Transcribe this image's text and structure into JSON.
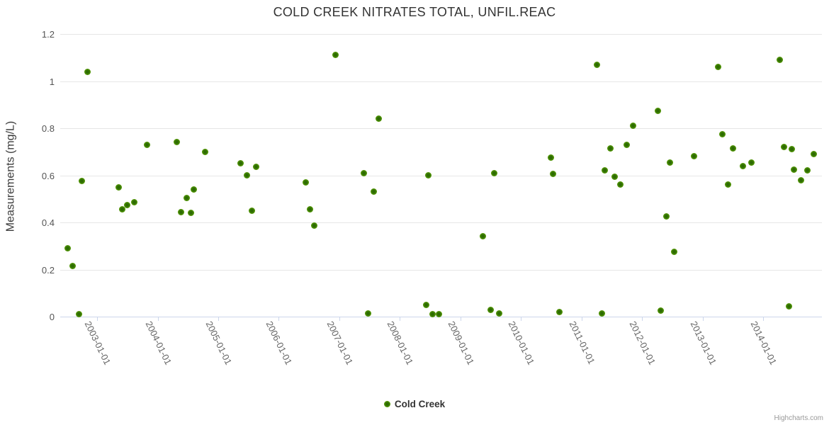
{
  "chart": {
    "title": "COLD CREEK NITRATES TOTAL, UNFIL.REAC",
    "y_axis_title": "Measurements (mg/L)",
    "legend": [
      "Cold Creek"
    ],
    "credits": "Highcharts.com",
    "colors": {
      "marker_outer": "#79c01f",
      "marker_mid": "#4e9104",
      "marker_core": "#2d6b02",
      "grid": "#e6e6e6",
      "axis": "#ccd6eb",
      "title_text": "#333333",
      "label_text": "#666666"
    }
  },
  "chart_data": {
    "type": "scatter",
    "title": "COLD CREEK NITRATES TOTAL, UNFIL.REAC",
    "xlabel": "",
    "ylabel": "Measurements (mg/L)",
    "grid": "horizontal",
    "legend_position": "bottom-center",
    "xlim": [
      2002.39,
      2014.97
    ],
    "ylim": [
      0,
      1.2
    ],
    "y_ticks": {
      "values": [
        0,
        0.2,
        0.4,
        0.6,
        0.8,
        1,
        1.2
      ],
      "labels": [
        "0",
        "0.2",
        "0.4",
        "0.6",
        "0.8",
        "1",
        "1.2"
      ]
    },
    "x_ticks": {
      "values": [
        2003,
        2004,
        2005,
        2006,
        2007,
        2008,
        2009,
        2010,
        2011,
        2012,
        2013,
        2014
      ],
      "labels": [
        "2003-01-01",
        "2004-01-01",
        "2005-01-01",
        "2006-01-01",
        "2007-01-01",
        "2008-01-01",
        "2009-01-01",
        "2010-01-01",
        "2011-01-01",
        "2012-01-01",
        "2013-01-01",
        "2014-01-01"
      ]
    },
    "series": [
      {
        "name": "Cold Creek",
        "points": [
          [
            2002.51,
            0.29
          ],
          [
            2002.6,
            0.215
          ],
          [
            2002.7,
            0.01
          ],
          [
            2002.75,
            0.575
          ],
          [
            2002.84,
            1.04
          ],
          [
            2003.35,
            0.55
          ],
          [
            2003.41,
            0.455
          ],
          [
            2003.5,
            0.475
          ],
          [
            2003.61,
            0.485
          ],
          [
            2003.82,
            0.73
          ],
          [
            2004.31,
            0.74
          ],
          [
            2004.38,
            0.445
          ],
          [
            2004.48,
            0.505
          ],
          [
            2004.55,
            0.44
          ],
          [
            2004.6,
            0.54
          ],
          [
            2004.78,
            0.7
          ],
          [
            2005.37,
            0.65
          ],
          [
            2005.47,
            0.6
          ],
          [
            2005.56,
            0.45
          ],
          [
            2005.62,
            0.635
          ],
          [
            2006.45,
            0.57
          ],
          [
            2006.52,
            0.455
          ],
          [
            2006.58,
            0.385
          ],
          [
            2006.94,
            1.11
          ],
          [
            2007.41,
            0.61
          ],
          [
            2007.48,
            0.015
          ],
          [
            2007.57,
            0.53
          ],
          [
            2007.65,
            0.84
          ],
          [
            2008.44,
            0.05
          ],
          [
            2008.47,
            0.6
          ],
          [
            2008.54,
            0.01
          ],
          [
            2008.65,
            0.01
          ],
          [
            2009.37,
            0.34
          ],
          [
            2009.5,
            0.03
          ],
          [
            2009.56,
            0.61
          ],
          [
            2009.64,
            0.015
          ],
          [
            2010.49,
            0.675
          ],
          [
            2010.53,
            0.605
          ],
          [
            2010.64,
            0.02
          ],
          [
            2011.25,
            1.07
          ],
          [
            2011.34,
            0.015
          ],
          [
            2011.38,
            0.62
          ],
          [
            2011.48,
            0.715
          ],
          [
            2011.55,
            0.595
          ],
          [
            2011.64,
            0.56
          ],
          [
            2011.75,
            0.73
          ],
          [
            2011.85,
            0.81
          ],
          [
            2012.26,
            0.875
          ],
          [
            2012.31,
            0.025
          ],
          [
            2012.4,
            0.425
          ],
          [
            2012.46,
            0.655
          ],
          [
            2012.53,
            0.275
          ],
          [
            2012.86,
            0.68
          ],
          [
            2013.25,
            1.06
          ],
          [
            2013.33,
            0.775
          ],
          [
            2013.42,
            0.56
          ],
          [
            2013.5,
            0.715
          ],
          [
            2013.66,
            0.64
          ],
          [
            2013.81,
            0.655
          ],
          [
            2014.27,
            1.09
          ],
          [
            2014.34,
            0.72
          ],
          [
            2014.42,
            0.045
          ],
          [
            2014.47,
            0.71
          ],
          [
            2014.51,
            0.625
          ],
          [
            2014.62,
            0.58
          ],
          [
            2014.73,
            0.62
          ],
          [
            2014.83,
            0.69
          ]
        ]
      }
    ]
  }
}
